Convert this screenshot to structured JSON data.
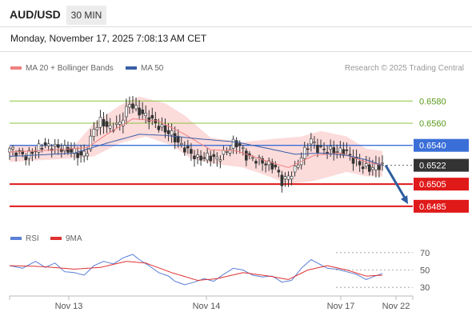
{
  "header": {
    "symbol": "AUD/USD",
    "timeframe": "30 MIN",
    "datetime": "Monday, November 17, 2025 7:08:13 AM CET"
  },
  "legend": {
    "ma20_label": "MA 20 + Bollinger Bands",
    "ma50_label": "MA 50",
    "copyright": "Research © 2025 Trading Central",
    "rsi_label": "RSI",
    "rsi_ma_label": "9MA"
  },
  "colors": {
    "bullish": "#ffffff",
    "bearish": "#333333",
    "ma20": "#f08080",
    "bollinger_fill": "#fbd5d5",
    "ma50": "#3a5ea8",
    "resistance": "#8cc63f",
    "pivot": "#3a6fd8",
    "support": "#e01919",
    "current": "#333333",
    "arrow": "#2f5d9f",
    "rsi": "#5a7fd6",
    "rsi_ma": "#e03030"
  },
  "chart_data": {
    "type": "line",
    "title": "",
    "xlabel": "",
    "ylabel": "",
    "ylim": [
      0.6469,
      0.6599
    ],
    "x_ticks": [
      "Nov 13",
      "Nov 14",
      "Nov 17",
      "Nov 22"
    ],
    "levels": [
      {
        "value": 0.658,
        "label": "0.6580",
        "type": "resistance"
      },
      {
        "value": 0.656,
        "label": "0.6560",
        "type": "resistance"
      },
      {
        "value": 0.654,
        "label": "0.6540",
        "type": "pivot"
      },
      {
        "value": 0.6522,
        "label": "0.6522",
        "type": "current"
      },
      {
        "value": 0.6505,
        "label": "0.6505",
        "type": "support"
      },
      {
        "value": 0.6485,
        "label": "0.6485",
        "type": "support"
      }
    ],
    "price_anchors": [
      [
        0,
        0.6537
      ],
      [
        5,
        0.653
      ],
      [
        10,
        0.654
      ],
      [
        15,
        0.6538
      ],
      [
        20,
        0.6534
      ],
      [
        22,
        0.653
      ],
      [
        24,
        0.6536
      ],
      [
        26,
        0.6555
      ],
      [
        28,
        0.6562
      ],
      [
        31,
        0.6555
      ],
      [
        34,
        0.656
      ],
      [
        37,
        0.6578
      ],
      [
        40,
        0.657
      ],
      [
        43,
        0.6565
      ],
      [
        46,
        0.6557
      ],
      [
        50,
        0.655
      ],
      [
        52,
        0.6542
      ],
      [
        55,
        0.6535
      ],
      [
        58,
        0.6528
      ],
      [
        61,
        0.653
      ],
      [
        64,
        0.6528
      ],
      [
        67,
        0.6535
      ],
      [
        69,
        0.6542
      ],
      [
        71,
        0.654
      ],
      [
        73,
        0.653
      ],
      [
        76,
        0.6527
      ],
      [
        79,
        0.6524
      ],
      [
        82,
        0.652
      ],
      [
        84,
        0.6507
      ],
      [
        86,
        0.6512
      ],
      [
        88,
        0.6518
      ],
      [
        90,
        0.653
      ],
      [
        93,
        0.6545
      ],
      [
        95,
        0.6537
      ],
      [
        98,
        0.6536
      ],
      [
        101,
        0.6535
      ],
      [
        104,
        0.6534
      ],
      [
        106,
        0.6527
      ],
      [
        109,
        0.6521
      ],
      [
        111,
        0.6519
      ],
      [
        113,
        0.6521
      ],
      [
        115,
        0.6522
      ]
    ],
    "ma20_anchors": [
      [
        0,
        0.6534
      ],
      [
        15,
        0.6536
      ],
      [
        24,
        0.6538
      ],
      [
        30,
        0.655
      ],
      [
        38,
        0.6564
      ],
      [
        46,
        0.6562
      ],
      [
        54,
        0.655
      ],
      [
        62,
        0.6536
      ],
      [
        70,
        0.6535
      ],
      [
        78,
        0.6527
      ],
      [
        86,
        0.652
      ],
      [
        94,
        0.6531
      ],
      [
        102,
        0.6533
      ],
      [
        110,
        0.6525
      ],
      [
        115,
        0.6522
      ]
    ],
    "bb_upper_anchors": [
      [
        0,
        0.654
      ],
      [
        20,
        0.654
      ],
      [
        26,
        0.656
      ],
      [
        34,
        0.6576
      ],
      [
        40,
        0.6584
      ],
      [
        48,
        0.6578
      ],
      [
        54,
        0.6567
      ],
      [
        62,
        0.6547
      ],
      [
        72,
        0.6543
      ],
      [
        82,
        0.6546
      ],
      [
        90,
        0.6548
      ],
      [
        96,
        0.6553
      ],
      [
        104,
        0.6548
      ],
      [
        110,
        0.6537
      ],
      [
        115,
        0.6535
      ]
    ],
    "bb_lower_anchors": [
      [
        0,
        0.6525
      ],
      [
        18,
        0.6528
      ],
      [
        26,
        0.653
      ],
      [
        34,
        0.6542
      ],
      [
        42,
        0.6548
      ],
      [
        50,
        0.654
      ],
      [
        56,
        0.6528
      ],
      [
        62,
        0.6524
      ],
      [
        72,
        0.652
      ],
      [
        80,
        0.6512
      ],
      [
        86,
        0.6505
      ],
      [
        94,
        0.6508
      ],
      [
        104,
        0.6516
      ],
      [
        110,
        0.6512
      ],
      [
        115,
        0.6512
      ]
    ],
    "ma50_anchors": [
      [
        0,
        0.653
      ],
      [
        20,
        0.6533
      ],
      [
        30,
        0.6542
      ],
      [
        40,
        0.655
      ],
      [
        48,
        0.6549
      ],
      [
        58,
        0.6546
      ],
      [
        70,
        0.6543
      ],
      [
        80,
        0.6537
      ],
      [
        88,
        0.6532
      ],
      [
        96,
        0.6533
      ],
      [
        104,
        0.6531
      ],
      [
        110,
        0.6527
      ],
      [
        115,
        0.6522
      ]
    ],
    "projection": {
      "from": 0.6522,
      "to": 0.6487
    },
    "rsi": {
      "ylim": [
        20,
        80
      ],
      "ticks": [
        70,
        50,
        30
      ],
      "rsi_anchors": [
        [
          0,
          55
        ],
        [
          4,
          52
        ],
        [
          8,
          60
        ],
        [
          11,
          53
        ],
        [
          14,
          58
        ],
        [
          17,
          48
        ],
        [
          20,
          47
        ],
        [
          23,
          44
        ],
        [
          26,
          55
        ],
        [
          29,
          60
        ],
        [
          32,
          57
        ],
        [
          35,
          64
        ],
        [
          38,
          68
        ],
        [
          40,
          62
        ],
        [
          43,
          55
        ],
        [
          46,
          47
        ],
        [
          49,
          43
        ],
        [
          51,
          37
        ],
        [
          54,
          33
        ],
        [
          57,
          36
        ],
        [
          60,
          40
        ],
        [
          63,
          37
        ],
        [
          66,
          45
        ],
        [
          69,
          52
        ],
        [
          72,
          50
        ],
        [
          75,
          44
        ],
        [
          78,
          42
        ],
        [
          81,
          43
        ],
        [
          84,
          36
        ],
        [
          87,
          38
        ],
        [
          90,
          52
        ],
        [
          93,
          62
        ],
        [
          95,
          58
        ],
        [
          98,
          52
        ],
        [
          101,
          51
        ],
        [
          104,
          48
        ],
        [
          107,
          45
        ],
        [
          110,
          39
        ],
        [
          112,
          42
        ],
        [
          115,
          46
        ]
      ],
      "ma_anchors": [
        [
          0,
          55
        ],
        [
          10,
          54
        ],
        [
          20,
          51
        ],
        [
          28,
          53
        ],
        [
          36,
          60
        ],
        [
          42,
          58
        ],
        [
          50,
          47
        ],
        [
          58,
          38
        ],
        [
          64,
          40
        ],
        [
          72,
          47
        ],
        [
          80,
          43
        ],
        [
          86,
          39
        ],
        [
          92,
          50
        ],
        [
          98,
          55
        ],
        [
          104,
          50
        ],
        [
          110,
          43
        ],
        [
          115,
          44
        ]
      ]
    }
  }
}
